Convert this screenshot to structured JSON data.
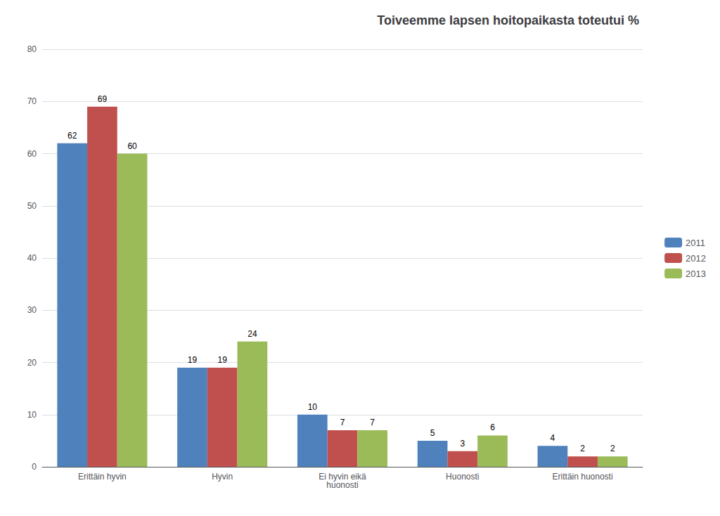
{
  "chart_data": {
    "type": "bar",
    "title": "Toiveemme lapsen hoitopaikasta toteutui %",
    "categories": [
      "Erittäin hyvin",
      "Hyvin",
      "Ei hyvin eikä\nhuonosti",
      "Huonosti",
      "Erittäin huonosti"
    ],
    "series": [
      {
        "name": "2011",
        "color": "#4F81BD",
        "values": [
          62,
          19,
          10,
          5,
          4
        ]
      },
      {
        "name": "2012",
        "color": "#C0504D",
        "values": [
          69,
          19,
          7,
          3,
          2
        ]
      },
      {
        "name": "2013",
        "color": "#9BBB59",
        "values": [
          60,
          24,
          7,
          6,
          2
        ]
      }
    ],
    "ylim": [
      0,
      80
    ],
    "yticks": [
      0,
      10,
      20,
      30,
      40,
      50,
      60,
      70,
      80
    ],
    "grid": true,
    "legend": "right",
    "data_labels": true
  }
}
